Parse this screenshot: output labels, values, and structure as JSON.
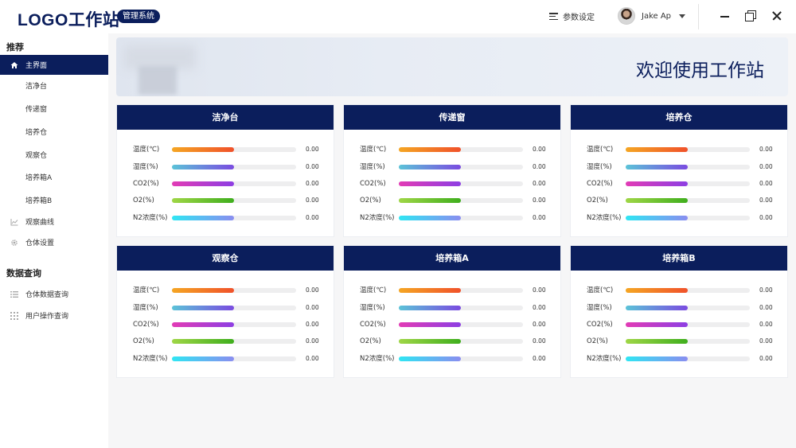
{
  "header": {
    "logo": "LOGO工作站",
    "badge": "管理系统",
    "settings_label": "参数设定",
    "user_name": "Jake Ap"
  },
  "sidebar": {
    "section1_title": "推荐",
    "items1": [
      {
        "label": "主界面",
        "icon": "home-icon"
      },
      {
        "label": "洁净台"
      },
      {
        "label": "传递窗"
      },
      {
        "label": "培养仓"
      },
      {
        "label": "观察仓"
      },
      {
        "label": "培养箱A"
      },
      {
        "label": "培养箱B"
      },
      {
        "label": "观察曲线",
        "icon": "chart-icon"
      },
      {
        "label": "仓体设置",
        "icon": "gear-icon"
      }
    ],
    "section2_title": "数据查询",
    "items2": [
      {
        "label": "仓体数据查询",
        "icon": "list-icon"
      },
      {
        "label": "用户操作查询",
        "icon": "grid-icon"
      }
    ]
  },
  "banner": {
    "title": "欢迎使用工作站"
  },
  "cards": [
    {
      "title": "洁净台",
      "metrics": [
        {
          "label": "温度(℃)",
          "value": "0.00",
          "level": 0.5
        },
        {
          "label": "湿度(%)",
          "value": "0.00",
          "level": 0.5
        },
        {
          "label": "CO2(%)",
          "value": "0.00",
          "level": 0.5
        },
        {
          "label": "O2(%)",
          "value": "0.00",
          "level": 0.5
        },
        {
          "label": "N2浓度(%)",
          "value": "0.00",
          "level": 0.5
        }
      ]
    },
    {
      "title": "传递窗",
      "metrics": [
        {
          "label": "温度(℃)",
          "value": "0.00",
          "level": 0.5
        },
        {
          "label": "湿度(%)",
          "value": "0.00",
          "level": 0.5
        },
        {
          "label": "CO2(%)",
          "value": "0.00",
          "level": 0.5
        },
        {
          "label": "O2(%)",
          "value": "0.00",
          "level": 0.5
        },
        {
          "label": "N2浓度(%)",
          "value": "0.00",
          "level": 0.5
        }
      ]
    },
    {
      "title": "培养仓",
      "metrics": [
        {
          "label": "温度(℃)",
          "value": "0.00",
          "level": 0.5
        },
        {
          "label": "湿度(%)",
          "value": "0.00",
          "level": 0.5
        },
        {
          "label": "CO2(%)",
          "value": "0.00",
          "level": 0.5
        },
        {
          "label": "O2(%)",
          "value": "0.00",
          "level": 0.5
        },
        {
          "label": "N2浓度(%)",
          "value": "0.00",
          "level": 0.5
        }
      ]
    },
    {
      "title": "观察仓",
      "metrics": [
        {
          "label": "温度(℃)",
          "value": "0.00",
          "level": 0.5
        },
        {
          "label": "湿度(%)",
          "value": "0.00",
          "level": 0.5
        },
        {
          "label": "CO2(%)",
          "value": "0.00",
          "level": 0.5
        },
        {
          "label": "O2(%)",
          "value": "0.00",
          "level": 0.5
        },
        {
          "label": "N2浓度(%)",
          "value": "0.00",
          "level": 0.5
        }
      ]
    },
    {
      "title": "培养箱A",
      "metrics": [
        {
          "label": "温度(℃)",
          "value": "0.00",
          "level": 0.5
        },
        {
          "label": "湿度(%)",
          "value": "0.00",
          "level": 0.5
        },
        {
          "label": "CO2(%)",
          "value": "0.00",
          "level": 0.5
        },
        {
          "label": "O2(%)",
          "value": "0.00",
          "level": 0.5
        },
        {
          "label": "N2浓度(%)",
          "value": "0.00",
          "level": 0.5
        }
      ]
    },
    {
      "title": "培养箱B",
      "metrics": [
        {
          "label": "温度(℃)",
          "value": "0.00",
          "level": 0.5
        },
        {
          "label": "湿度(%)",
          "value": "0.00",
          "level": 0.5
        },
        {
          "label": "CO2(%)",
          "value": "0.00",
          "level": 0.5
        },
        {
          "label": "O2(%)",
          "value": "0.00",
          "level": 0.5
        },
        {
          "label": "N2浓度(%)",
          "value": "0.00",
          "level": 0.5
        }
      ]
    }
  ],
  "colors": {
    "brand": "#0b1e5c",
    "temp_bar": [
      "#f5a623",
      "#f0512a"
    ],
    "humidity_bar": [
      "#5bc3d8",
      "#7a4be0"
    ],
    "co2_bar": [
      "#e23bb5",
      "#8d3ee3"
    ],
    "o2_bar": [
      "#9fd646",
      "#3fae1d"
    ],
    "n2_bar": [
      "#2fe6f3",
      "#8a8df0"
    ]
  }
}
